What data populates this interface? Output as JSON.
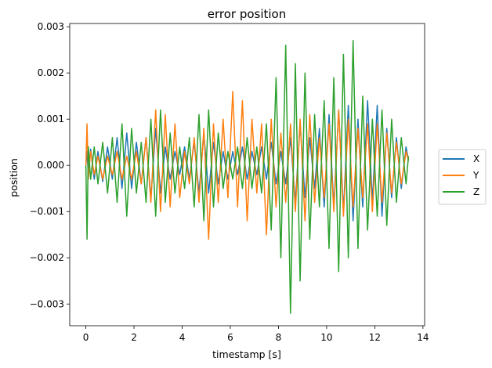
{
  "chart_data": {
    "type": "line",
    "title": "error position",
    "xlabel": "timestamp [s]",
    "ylabel": "position",
    "xlim": [
      -0.67,
      14.07
    ],
    "ylim": [
      -0.00347,
      0.00307
    ],
    "xticks": [
      0,
      2,
      4,
      6,
      8,
      10,
      12,
      14
    ],
    "xtick_labels": [
      "0",
      "2",
      "4",
      "6",
      "8",
      "10",
      "12",
      "14"
    ],
    "yticks": [
      -0.003,
      -0.002,
      -0.001,
      0.0,
      0.001,
      0.002,
      0.003
    ],
    "ytick_labels": [
      "−0.003",
      "−0.002",
      "−0.001",
      "0.000",
      "0.001",
      "0.002",
      "0.003"
    ],
    "grid": false,
    "legend_position": "center-right (outside plot)",
    "series": [
      {
        "name": "X",
        "color": "#1f77b4",
        "x": [
          0.0,
          0.05,
          0.1,
          0.2,
          0.35,
          0.5,
          0.7,
          0.9,
          1.1,
          1.3,
          1.5,
          1.7,
          1.9,
          2.1,
          2.3,
          2.5,
          2.7,
          2.9,
          3.1,
          3.3,
          3.5,
          3.7,
          3.9,
          4.1,
          4.3,
          4.5,
          4.7,
          4.9,
          5.1,
          5.3,
          5.5,
          5.7,
          5.9,
          6.1,
          6.3,
          6.5,
          6.7,
          6.9,
          7.1,
          7.3,
          7.5,
          7.7,
          7.9,
          8.1,
          8.3,
          8.5,
          8.7,
          8.9,
          9.1,
          9.3,
          9.5,
          9.7,
          9.9,
          10.1,
          10.3,
          10.5,
          10.7,
          10.9,
          11.1,
          11.3,
          11.5,
          11.7,
          11.9,
          12.1,
          12.3,
          12.5,
          12.7,
          12.9,
          13.1,
          13.3,
          13.4
        ],
        "y": [
          0.0,
          0.0003,
          -0.0002,
          0.00035,
          -0.0003,
          0.0003,
          -0.00035,
          0.0004,
          -0.0003,
          0.0006,
          -0.0005,
          0.0007,
          -0.0005,
          0.0005,
          -0.0004,
          0.0006,
          -0.0007,
          0.0008,
          -0.0006,
          0.0004,
          -0.0003,
          0.0003,
          -0.0002,
          0.0004,
          -0.0003,
          0.0005,
          -0.0006,
          0.0007,
          -0.0006,
          0.0005,
          -0.0004,
          0.0003,
          -0.0003,
          0.0003,
          -0.0002,
          0.0004,
          -0.0003,
          0.0003,
          -0.0002,
          0.0004,
          -0.0003,
          0.0005,
          -0.0004,
          0.0003,
          -0.0004,
          0.0006,
          -0.0008,
          0.0009,
          -0.0007,
          0.0006,
          -0.0005,
          0.0008,
          -0.0009,
          0.0011,
          -0.0009,
          0.0012,
          -0.001,
          0.0013,
          -0.0012,
          0.001,
          -0.0009,
          0.0014,
          -0.0008,
          0.0013,
          -0.0011,
          0.0008,
          -0.0007,
          0.0006,
          -0.0005,
          0.0004,
          0.0001
        ]
      },
      {
        "name": "Y",
        "color": "#ff7f0e",
        "x": [
          0.0,
          0.05,
          0.1,
          0.2,
          0.35,
          0.5,
          0.7,
          0.9,
          1.1,
          1.3,
          1.5,
          1.7,
          1.9,
          2.1,
          2.3,
          2.5,
          2.7,
          2.9,
          3.1,
          3.3,
          3.5,
          3.7,
          3.9,
          4.1,
          4.3,
          4.5,
          4.7,
          4.9,
          5.1,
          5.3,
          5.5,
          5.7,
          5.9,
          6.1,
          6.3,
          6.5,
          6.7,
          6.9,
          7.1,
          7.3,
          7.5,
          7.7,
          7.9,
          8.1,
          8.3,
          8.5,
          8.7,
          8.9,
          9.1,
          9.3,
          9.5,
          9.7,
          9.9,
          10.1,
          10.3,
          10.5,
          10.7,
          10.9,
          11.1,
          11.3,
          11.5,
          11.7,
          11.9,
          12.1,
          12.3,
          12.5,
          12.7,
          12.9,
          13.1,
          13.3,
          13.4
        ],
        "y": [
          0.0,
          0.0009,
          -0.0003,
          0.0003,
          -0.0002,
          0.0002,
          -0.0003,
          0.0002,
          -0.0002,
          0.0003,
          -0.0003,
          0.0002,
          -0.0003,
          0.0003,
          -0.0004,
          0.0006,
          -0.0008,
          0.0012,
          -0.001,
          0.0011,
          -0.0009,
          0.0009,
          -0.0007,
          0.0003,
          -0.0004,
          0.0006,
          -0.0008,
          0.0008,
          -0.0016,
          0.0009,
          -0.0008,
          0.001,
          -0.0007,
          0.0016,
          -0.0009,
          0.0014,
          -0.0012,
          0.001,
          -0.0006,
          0.0009,
          -0.0015,
          0.001,
          -0.0009,
          0.0007,
          -0.0008,
          0.0009,
          -0.001,
          0.001,
          -0.0012,
          0.0011,
          -0.0008,
          0.0006,
          -0.0007,
          0.0009,
          -0.001,
          0.0012,
          -0.0011,
          0.001,
          -0.0009,
          0.0008,
          -0.0007,
          0.0009,
          -0.001,
          0.0009,
          -0.0008,
          0.0007,
          -0.0006,
          0.0005,
          -0.0004,
          0.0003,
          0.0001
        ]
      },
      {
        "name": "Z",
        "color": "#2ca02c",
        "x": [
          0.0,
          0.05,
          0.1,
          0.2,
          0.35,
          0.5,
          0.7,
          0.9,
          1.1,
          1.3,
          1.5,
          1.7,
          1.9,
          2.1,
          2.3,
          2.5,
          2.7,
          2.9,
          3.1,
          3.3,
          3.5,
          3.7,
          3.9,
          4.1,
          4.3,
          4.5,
          4.7,
          4.9,
          5.1,
          5.3,
          5.5,
          5.7,
          5.9,
          6.1,
          6.3,
          6.5,
          6.7,
          6.9,
          7.1,
          7.3,
          7.5,
          7.7,
          7.9,
          8.1,
          8.3,
          8.5,
          8.7,
          8.9,
          9.1,
          9.3,
          9.5,
          9.7,
          9.9,
          10.1,
          10.3,
          10.5,
          10.7,
          10.9,
          11.1,
          11.3,
          11.5,
          11.7,
          11.9,
          12.1,
          12.3,
          12.5,
          12.7,
          12.9,
          13.1,
          13.3,
          13.4
        ],
        "y": [
          0.0,
          -0.0016,
          0.0004,
          -0.0003,
          0.0004,
          -0.0004,
          0.0005,
          -0.0006,
          0.0006,
          -0.0008,
          0.0009,
          -0.0011,
          0.0008,
          -0.0006,
          0.0005,
          -0.0008,
          0.001,
          -0.0011,
          0.0012,
          -0.0008,
          0.0007,
          -0.0006,
          0.0004,
          -0.0005,
          0.0006,
          -0.0009,
          0.0011,
          -0.0012,
          0.0012,
          -0.0009,
          0.0007,
          -0.0005,
          0.0003,
          -0.0003,
          0.0004,
          -0.0005,
          0.0006,
          -0.0005,
          0.0004,
          -0.0006,
          0.0009,
          -0.0014,
          0.0019,
          -0.002,
          0.0026,
          -0.0032,
          0.0022,
          -0.0025,
          0.002,
          -0.0016,
          0.0011,
          -0.0009,
          0.0014,
          -0.0018,
          0.0019,
          -0.0023,
          0.0024,
          -0.002,
          0.0027,
          -0.0018,
          0.0015,
          -0.0014,
          0.001,
          -0.0011,
          0.0012,
          -0.0013,
          0.001,
          -0.0008,
          0.0006,
          -0.0004,
          0.0002
        ]
      }
    ]
  }
}
